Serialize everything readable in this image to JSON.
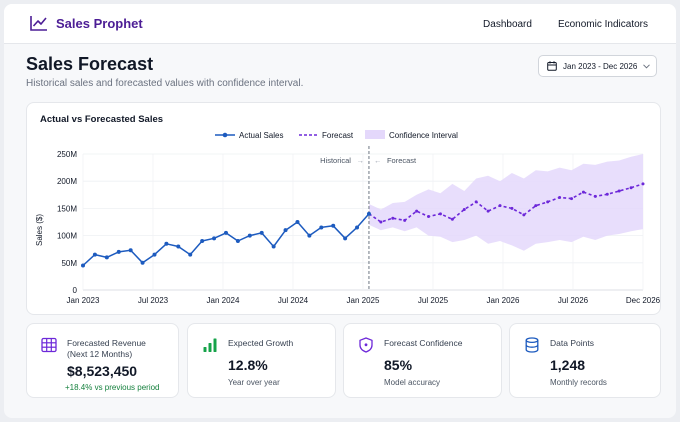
{
  "app": {
    "brand": "Sales Prophet",
    "nav": [
      "Dashboard",
      "Economic Indicators"
    ]
  },
  "page": {
    "title": "Sales Forecast",
    "subtitle": "Historical sales and forecasted values with confidence interval.",
    "date_range": "Jan 2023 - Dec 2026"
  },
  "colors": {
    "actual": "#1d5bbf",
    "forecast": "#6d28d9",
    "confidence": "#e4d8fb",
    "brand": "#4c1d95",
    "growth": "#16a34a"
  },
  "chart_data": {
    "type": "line",
    "title": "Actual vs Forecasted Sales",
    "ylabel": "Sales ($)",
    "xlabel": "",
    "ylim": [
      0,
      250
    ],
    "y_unit": "M",
    "y_ticks": [
      "0",
      "50M",
      "100M",
      "150M",
      "200M",
      "250M"
    ],
    "x_ticks": [
      "Jan 2023",
      "Jul 2023",
      "Jan 2024",
      "Jul 2024",
      "Jan 2025",
      "Jul 2025",
      "Jan 2026",
      "Jul 2026",
      "Dec 2026"
    ],
    "grid": true,
    "legend": {
      "placement": "top",
      "entries": [
        "Actual Sales",
        "Forecast",
        "Confidence Interval"
      ]
    },
    "annotations": {
      "historical": "Historical",
      "forecast": "Forecast",
      "split": "2025-01"
    },
    "series": [
      {
        "name": "Actual Sales",
        "x": [
          "2023-01",
          "2023-02",
          "2023-03",
          "2023-04",
          "2023-05",
          "2023-06",
          "2023-07",
          "2023-08",
          "2023-09",
          "2023-10",
          "2023-11",
          "2023-12",
          "2024-01",
          "2024-02",
          "2024-03",
          "2024-04",
          "2024-05",
          "2024-06",
          "2024-07",
          "2024-08",
          "2024-09",
          "2024-10",
          "2024-11",
          "2024-12",
          "2025-01"
        ],
        "values": [
          45,
          65,
          60,
          70,
          73,
          50,
          65,
          85,
          80,
          65,
          90,
          95,
          105,
          90,
          100,
          105,
          80,
          110,
          125,
          100,
          115,
          118,
          95,
          115,
          140
        ]
      },
      {
        "name": "Forecast",
        "x": [
          "2025-01",
          "2025-02",
          "2025-03",
          "2025-04",
          "2025-05",
          "2025-06",
          "2025-07",
          "2025-08",
          "2025-09",
          "2025-10",
          "2025-11",
          "2025-12",
          "2026-01",
          "2026-02",
          "2026-03",
          "2026-04",
          "2026-05",
          "2026-06",
          "2026-07",
          "2026-08",
          "2026-09",
          "2026-10",
          "2026-11",
          "2026-12"
        ],
        "values": [
          140,
          125,
          132,
          128,
          145,
          135,
          140,
          130,
          148,
          162,
          145,
          155,
          150,
          138,
          155,
          162,
          170,
          168,
          180,
          172,
          176,
          182,
          188,
          195
        ],
        "lower": [
          120,
          110,
          115,
          108,
          115,
          100,
          98,
          88,
          92,
          100,
          85,
          90,
          82,
          72,
          85,
          88,
          92,
          88,
          98,
          92,
          100,
          103,
          108,
          112
        ],
        "upper": [
          158,
          148,
          160,
          162,
          175,
          185,
          178,
          195,
          182,
          205,
          210,
          200,
          215,
          205,
          220,
          218,
          225,
          220,
          232,
          230,
          236,
          238,
          245,
          250
        ]
      }
    ]
  },
  "stats": [
    {
      "label": "Forecasted Revenue",
      "sublabel": "(Next 12 Months)",
      "value": "$8,523,450",
      "sub": "+18.4% vs previous period"
    },
    {
      "label": "Expected Growth",
      "value": "12.8%",
      "sub": "Year over year"
    },
    {
      "label": "Forecast Confidence",
      "value": "85%",
      "sub": "Model accuracy"
    },
    {
      "label": "Data Points",
      "value": "1,248",
      "sub": "Monthly records"
    }
  ]
}
